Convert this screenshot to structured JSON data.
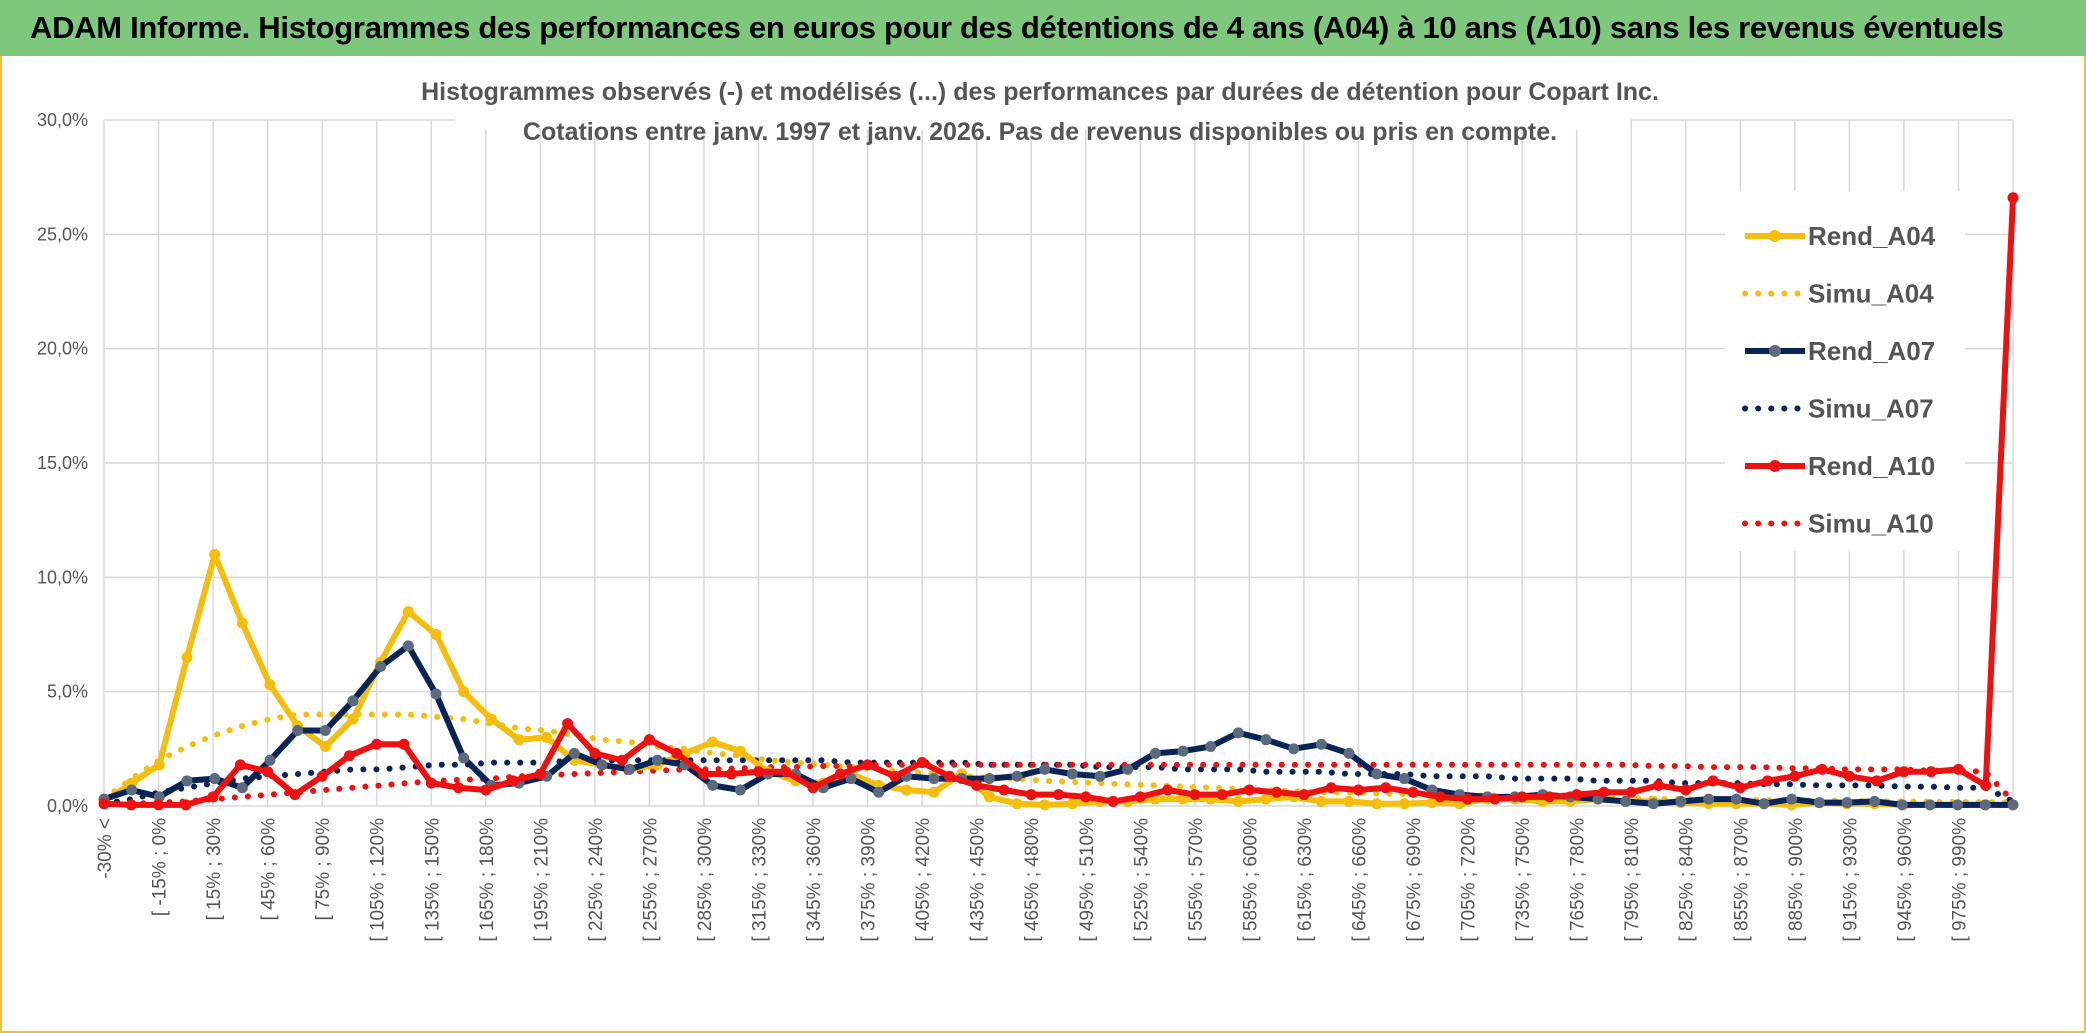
{
  "header": {
    "title": "ADAM Informe. Histogrammes des performances en euros pour des détentions de 4 ans (A04) à 10 ans (A10) sans les revenus éventuels"
  },
  "colors": {
    "header_bg": "#7dc87d",
    "A04": "#f5be0b",
    "A07": "#0b2457",
    "A10": "#ee1111",
    "grid": "#d9d9d9"
  },
  "chart_data": {
    "type": "line",
    "title_line1": "Histogrammes observés (-) et modélisés (...) des performances par durées de détention pour Copart Inc.",
    "title_line2": "Cotations entre janv. 1997 et janv. 2026. Pas de revenus disponibles ou pris en compte.",
    "y_ticks": [
      "0,0%",
      "5,0%",
      "10,0%",
      "15,0%",
      "20,0%",
      "25,0%",
      "30,0%"
    ],
    "ylim": [
      0,
      30
    ],
    "x_labels": [
      "-30% <",
      "[ -15% ; 0%",
      "[ 15% ; 30%",
      "[ 45% ; 60%",
      "[ 75% ; 90%",
      "[ 105% ; 120%",
      "[ 135% ; 150%",
      "[ 165% ; 180%",
      "[ 195% ; 210%",
      "[ 225% ; 240%",
      "[ 255% ; 270%",
      "[ 285% ; 300%",
      "[ 315% ; 330%",
      "[ 345% ; 360%",
      "[ 375% ; 390%",
      "[ 405% ; 420%",
      "[ 435% ; 450%",
      "[ 465% ; 480%",
      "[ 495% ; 510%",
      "[ 525% ; 540%",
      "[ 555% ; 570%",
      "[ 585% ; 600%",
      "[ 615% ; 630%",
      "[ 645% ; 660%",
      "[ 675% ; 690%",
      "[ 705% ; 720%",
      "[ 735% ; 750%",
      "[ 765% ; 780%",
      "[ 795% ; 810%",
      "[ 825% ; 840%",
      "[ 855% ; 870%",
      "[ 885% ; 900%",
      "[ 915% ; 930%",
      "[ 945% ; 960%",
      "[ 975% ; 990%"
    ],
    "series": [
      {
        "name": "Rend_A04",
        "style": "solid",
        "color": "#f5be0b",
        "values": [
          0.2,
          1.0,
          1.8,
          6.5,
          11.0,
          8.0,
          5.3,
          3.5,
          2.6,
          3.8,
          6.3,
          8.5,
          7.5,
          5.0,
          3.8,
          2.9,
          3.0,
          2.0,
          1.8,
          1.6,
          1.8,
          2.3,
          2.8,
          2.4,
          1.5,
          1.1,
          1.0,
          1.4,
          0.9,
          0.7,
          0.6,
          1.4,
          0.4,
          0.1,
          0.05,
          0.1,
          0.2,
          0.2,
          0.3,
          0.3,
          0.3,
          0.2,
          0.3,
          0.4,
          0.2,
          0.2,
          0.1,
          0.1,
          0.15,
          0.1,
          0.3,
          0.3,
          0.2,
          0.2,
          0.3,
          0.2,
          0.2,
          0.15,
          0.1,
          0.1,
          0.1,
          0.05,
          0.15,
          0.1,
          0.1,
          0.05,
          0.05,
          0.05,
          0.05,
          0.05
        ]
      },
      {
        "name": "Simu_A04",
        "style": "dotted",
        "color": "#f5be0b",
        "values": [
          0.3,
          1.2,
          2.0,
          2.6,
          3.1,
          3.5,
          3.8,
          4.0,
          4.0,
          4.0,
          4.0,
          4.0,
          3.9,
          3.8,
          3.6,
          3.4,
          3.3,
          3.1,
          2.9,
          2.8,
          2.6,
          2.5,
          2.3,
          2.2,
          2.0,
          1.9,
          1.8,
          1.7,
          1.6,
          1.5,
          1.4,
          1.3,
          1.25,
          1.2,
          1.1,
          1.05,
          1.0,
          0.95,
          0.9,
          0.85,
          0.8,
          0.75,
          0.7,
          0.65,
          0.6,
          0.58,
          0.55,
          0.52,
          0.5,
          0.48,
          0.45,
          0.42,
          0.4,
          0.38,
          0.36,
          0.34,
          0.32,
          0.3,
          0.29,
          0.27,
          0.26,
          0.25,
          0.24,
          0.22,
          0.21,
          0.2,
          0.19,
          0.18,
          0.17,
          0.16
        ]
      },
      {
        "name": "Rend_A07",
        "style": "solid",
        "color": "#0b2457",
        "values": [
          0.3,
          0.7,
          0.4,
          1.1,
          1.2,
          0.8,
          2.0,
          3.3,
          3.3,
          4.6,
          6.1,
          7.0,
          4.9,
          2.1,
          0.9,
          1.0,
          1.3,
          2.3,
          1.8,
          1.6,
          2.0,
          1.8,
          0.9,
          0.7,
          1.4,
          1.4,
          0.8,
          1.2,
          0.6,
          1.3,
          1.2,
          1.2,
          1.2,
          1.3,
          1.6,
          1.4,
          1.3,
          1.6,
          2.3,
          2.4,
          2.6,
          3.2,
          2.9,
          2.5,
          2.7,
          2.3,
          1.4,
          1.2,
          0.7,
          0.5,
          0.4,
          0.4,
          0.5,
          0.4,
          0.3,
          0.2,
          0.1,
          0.2,
          0.3,
          0.3,
          0.1,
          0.3,
          0.15,
          0.15,
          0.2,
          0.05,
          0.05,
          0.05,
          0.05,
          0.05
        ]
      },
      {
        "name": "Simu_A07",
        "style": "dotted",
        "color": "#0b2457",
        "values": [
          0.1,
          0.3,
          0.6,
          0.8,
          1.0,
          1.2,
          1.3,
          1.4,
          1.5,
          1.6,
          1.6,
          1.7,
          1.8,
          1.8,
          1.9,
          1.9,
          1.9,
          2.0,
          2.0,
          2.0,
          2.0,
          2.0,
          2.0,
          2.0,
          2.0,
          2.0,
          2.0,
          1.9,
          1.9,
          1.9,
          1.9,
          1.9,
          1.8,
          1.8,
          1.8,
          1.8,
          1.7,
          1.7,
          1.7,
          1.6,
          1.6,
          1.6,
          1.5,
          1.5,
          1.5,
          1.4,
          1.4,
          1.4,
          1.3,
          1.3,
          1.3,
          1.2,
          1.2,
          1.2,
          1.1,
          1.1,
          1.1,
          1.0,
          1.0,
          1.0,
          0.95,
          0.95,
          0.9,
          0.9,
          0.9,
          0.85,
          0.85,
          0.8,
          0.8,
          0.2
        ]
      },
      {
        "name": "Rend_A10",
        "style": "solid",
        "color": "#ee1111",
        "values": [
          0.1,
          0.05,
          0.05,
          0.05,
          0.4,
          1.8,
          1.5,
          0.5,
          1.3,
          2.2,
          2.7,
          2.7,
          1.0,
          0.8,
          0.7,
          1.1,
          1.4,
          3.6,
          2.3,
          2.0,
          2.9,
          2.3,
          1.4,
          1.4,
          1.5,
          1.5,
          0.8,
          1.4,
          1.8,
          1.3,
          1.9,
          1.3,
          0.9,
          0.7,
          0.5,
          0.5,
          0.4,
          0.2,
          0.4,
          0.7,
          0.5,
          0.5,
          0.7,
          0.6,
          0.5,
          0.8,
          0.7,
          0.8,
          0.6,
          0.4,
          0.3,
          0.3,
          0.4,
          0.4,
          0.5,
          0.6,
          0.6,
          0.9,
          0.7,
          1.1,
          0.8,
          1.1,
          1.3,
          1.6,
          1.3,
          1.1,
          1.5,
          1.5,
          1.6,
          0.9,
          26.6
        ]
      },
      {
        "name": "Simu_A10",
        "style": "dotted",
        "color": "#ee1111",
        "values": [
          0.05,
          0.1,
          0.15,
          0.2,
          0.3,
          0.4,
          0.5,
          0.6,
          0.7,
          0.8,
          0.9,
          1.0,
          1.1,
          1.15,
          1.2,
          1.3,
          1.35,
          1.4,
          1.45,
          1.5,
          1.55,
          1.6,
          1.6,
          1.65,
          1.7,
          1.7,
          1.75,
          1.75,
          1.8,
          1.8,
          1.8,
          1.8,
          1.8,
          1.8,
          1.8,
          1.8,
          1.8,
          1.8,
          1.8,
          1.8,
          1.8,
          1.8,
          1.8,
          1.8,
          1.8,
          1.8,
          1.8,
          1.8,
          1.8,
          1.8,
          1.8,
          1.8,
          1.8,
          1.8,
          1.8,
          1.8,
          1.75,
          1.75,
          1.7,
          1.7,
          1.7,
          1.65,
          1.65,
          1.6,
          1.6,
          1.6,
          1.55,
          1.55,
          1.5,
          0.2
        ]
      }
    ],
    "legend_position": "right"
  }
}
